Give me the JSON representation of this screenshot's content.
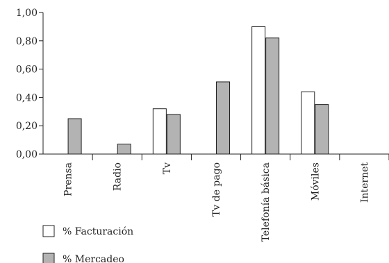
{
  "chart_data": {
    "type": "bar",
    "categories": [
      "Prensa",
      "Radio",
      "Tv",
      "Tv de pago",
      "Telefonía básica",
      "Móviles",
      "Internet"
    ],
    "series": [
      {
        "name": "% Facturación",
        "values": [
          null,
          null,
          0.32,
          null,
          0.9,
          0.44,
          null
        ],
        "color": "#ffffff"
      },
      {
        "name": "% Mercadeo",
        "values": [
          0.25,
          0.07,
          0.28,
          0.51,
          0.82,
          0.35,
          null
        ],
        "color": "#b3b3b3"
      }
    ],
    "y_ticks": [
      "0,00",
      "0,20",
      "0,40",
      "0,60",
      "0,80",
      "1,00"
    ],
    "ylim": [
      0,
      1
    ],
    "grid": false,
    "legend_position": "bottom-left",
    "stroke_color": "#222222"
  }
}
